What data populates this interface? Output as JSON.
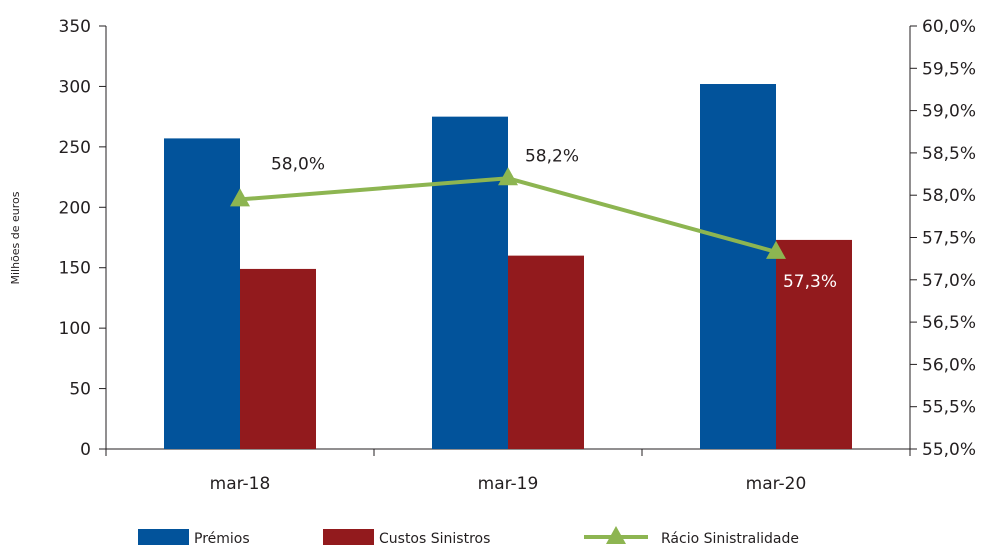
{
  "chart_data": {
    "type": "bar",
    "categories": [
      "mar-18",
      "mar-19",
      "mar-20"
    ],
    "series": [
      {
        "name": "Prémios",
        "type": "bar",
        "axis": "left",
        "color": "#02539b",
        "values": [
          257,
          275,
          302
        ]
      },
      {
        "name": "Custos Sinistros",
        "type": "bar",
        "axis": "left",
        "color": "#921a1d",
        "values": [
          149,
          160,
          173
        ]
      },
      {
        "name": "Rácio Sinistralidade",
        "type": "line",
        "axis": "right",
        "color": "#8db551",
        "marker": "triangle",
        "values": [
          57.95,
          58.2,
          57.33
        ],
        "labels": [
          "58,0%",
          "58,2%",
          "57,3%"
        ],
        "label_colors": [
          "#231f20",
          "#231f20",
          "#ffffff"
        ]
      }
    ],
    "ylabel": "Milhões de euros",
    "y_left": {
      "min": 0,
      "max": 350,
      "ticks": [
        "0",
        "50",
        "100",
        "150",
        "200",
        "250",
        "300",
        "350"
      ]
    },
    "y_right": {
      "min": 55.0,
      "max": 60.0,
      "ticks": [
        "55,0%",
        "55,5%",
        "56,0%",
        "56,5%",
        "57,0%",
        "57,5%",
        "58,0%",
        "58,5%",
        "59,0%",
        "59,5%",
        "60,0%"
      ]
    },
    "grid": false,
    "legend_position": "bottom"
  }
}
